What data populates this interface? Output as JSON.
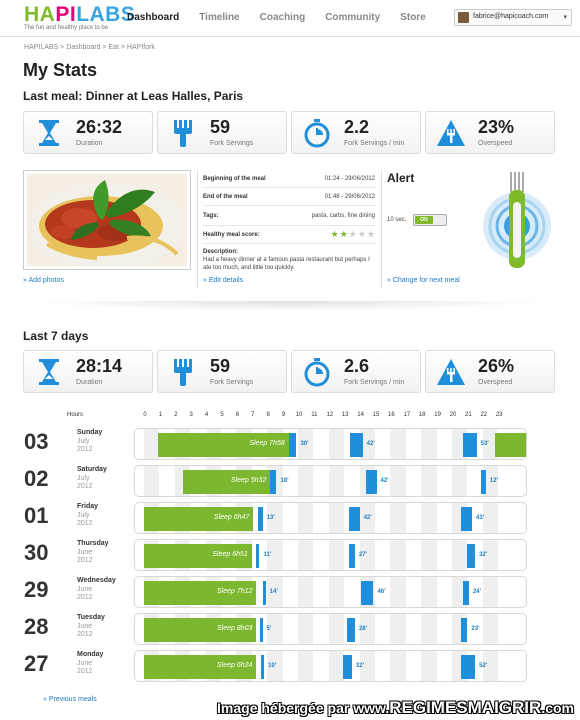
{
  "brand": {
    "logo_ha": "HA",
    "logo_pi": "PI",
    "logo_labs": "LABS",
    "tagline": "The fun and healthy place to be"
  },
  "nav": [
    "Dashboard",
    "Timeline",
    "Coaching",
    "Community",
    "Store"
  ],
  "user": {
    "email": "fabrice@hapicoach.com",
    "arrow": "▾"
  },
  "breadcrumb": "HAPILABS  >  Dashboard  >  Eat  >  HAPIfork",
  "title": "My Stats",
  "last_meal": {
    "heading": "Last meal: Dinner at Leas Halles, Paris",
    "stats": [
      {
        "icon": "hourglass-icon",
        "value": "26:32",
        "label": "Duration"
      },
      {
        "icon": "fork-icon",
        "value": "59",
        "label": "Fork Servings"
      },
      {
        "icon": "stopwatch-icon",
        "value": "2.2",
        "label": "Fork Servings / min"
      },
      {
        "icon": "warning-fork-icon",
        "value": "23%",
        "label": "Overspeed"
      }
    ],
    "add_photos": "» Add photos",
    "details": [
      {
        "k": "Beginning of the meal",
        "v": "01:24 - 29/06/2012"
      },
      {
        "k": "End of the meal",
        "v": "01:48 - 29/06/2012"
      },
      {
        "k": "Tags:",
        "v": "pasta, carbs, fine dining"
      }
    ],
    "score_label": "Healthy meal score:",
    "score": 2,
    "score_max": 5,
    "desc_label": "Description:",
    "desc": "Had a heavy dinner at a famous pasta restaurant but perhaps I ate too much, and little too quickly.",
    "edit": "» Edit details",
    "alert": {
      "title": "Alert",
      "sec": "10 sec.",
      "on": "ON",
      "change": "» Change for next meal"
    }
  },
  "week": {
    "heading": "Last 7 days",
    "stats": [
      {
        "icon": "hourglass-icon",
        "value": "28:14",
        "label": "Duration"
      },
      {
        "icon": "fork-icon",
        "value": "59",
        "label": "Fork Servings"
      },
      {
        "icon": "stopwatch-icon",
        "value": "2.6",
        "label": "Fork Servings / min"
      },
      {
        "icon": "warning-fork-icon",
        "value": "26%",
        "label": "Overspeed"
      }
    ],
    "hours_label": "Hours",
    "hours": [
      "0",
      "1",
      "2",
      "3",
      "4",
      "5",
      "6",
      "7",
      "8",
      "9",
      "10",
      "11",
      "12",
      "13",
      "14",
      "15",
      "16",
      "17",
      "18",
      "19",
      "20",
      "21",
      "22",
      "23"
    ],
    "days": [
      {
        "day": "03",
        "wd": "Sunday",
        "m": "July",
        "y": "2012",
        "sleep_start": 0.9,
        "sleep_end": 9.4,
        "sleep": "Sleep 7h58",
        "meals": [
          {
            "h": 9.4,
            "w": 0.5,
            "lab": "30'"
          },
          {
            "h": 13.4,
            "w": 0.8,
            "lab": "42'"
          },
          {
            "h": 20.7,
            "w": 0.9,
            "lab": "53'"
          }
        ],
        "extra_sleep": [
          22.8,
          24
        ]
      },
      {
        "day": "02",
        "wd": "Saturday",
        "m": "July",
        "y": "2012",
        "sleep_start": 2.5,
        "sleep_end": 8.2,
        "sleep": "Sleep 5h32",
        "meals": [
          {
            "h": 8.2,
            "w": 0.4,
            "lab": "18'"
          },
          {
            "h": 14.4,
            "w": 0.7,
            "lab": "42'"
          },
          {
            "h": 21.9,
            "w": 0.3,
            "lab": "12'"
          }
        ]
      },
      {
        "day": "01",
        "wd": "Friday",
        "m": "July",
        "y": "2012",
        "sleep_start": 0,
        "sleep_end": 7.1,
        "sleep": "Sleep 6h47",
        "meals": [
          {
            "h": 7.4,
            "w": 0.3,
            "lab": "13'"
          },
          {
            "h": 13.3,
            "w": 0.7,
            "lab": "42'"
          },
          {
            "h": 20.6,
            "w": 0.7,
            "lab": "43'"
          }
        ]
      },
      {
        "day": "30",
        "wd": "Thursday",
        "m": "June",
        "y": "2012",
        "sleep_start": 0,
        "sleep_end": 7.0,
        "sleep": "Sleep 6h51",
        "meals": [
          {
            "h": 7.3,
            "w": 0.2,
            "lab": "11'"
          },
          {
            "h": 13.3,
            "w": 0.4,
            "lab": "27'"
          },
          {
            "h": 21.0,
            "w": 0.5,
            "lab": "32'"
          }
        ]
      },
      {
        "day": "29",
        "wd": "Wednesday",
        "m": "June",
        "y": "2012",
        "sleep_start": 0,
        "sleep_end": 7.3,
        "sleep": "Sleep 7h12",
        "meals": [
          {
            "h": 7.7,
            "w": 0.2,
            "lab": "14'"
          },
          {
            "h": 14.1,
            "w": 0.8,
            "lab": "46'"
          },
          {
            "h": 20.7,
            "w": 0.4,
            "lab": "24'"
          }
        ]
      },
      {
        "day": "28",
        "wd": "Tuesday",
        "m": "June",
        "y": "2012",
        "sleep_start": 0,
        "sleep_end": 7.3,
        "sleep": "Sleep 8h03",
        "meals": [
          {
            "h": 7.5,
            "w": 0.1,
            "lab": "5'"
          },
          {
            "h": 13.2,
            "w": 0.5,
            "lab": "28'"
          },
          {
            "h": 20.6,
            "w": 0.4,
            "lab": "23'"
          }
        ]
      },
      {
        "day": "27",
        "wd": "Monday",
        "m": "June",
        "y": "2012",
        "sleep_start": 0,
        "sleep_end": 7.3,
        "sleep": "Sleep 6h24",
        "meals": [
          {
            "h": 7.6,
            "w": 0.2,
            "lab": "10'"
          },
          {
            "h": 12.9,
            "w": 0.6,
            "lab": "32'"
          },
          {
            "h": 20.6,
            "w": 0.9,
            "lab": "52'"
          }
        ]
      }
    ],
    "prev": "» Previous meals"
  },
  "colors": {
    "green": "#7cb82f",
    "blue": "#1f8fd9",
    "magenta": "#e4007c",
    "link": "#1e7bc4"
  },
  "watermark": {
    "pre": "Image hébergée par www.",
    "big": "REGIMESMAIGRIR",
    "post": ".com"
  }
}
